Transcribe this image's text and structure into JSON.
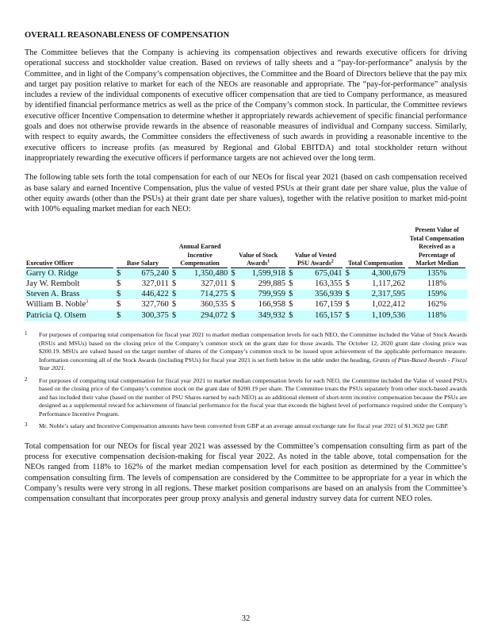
{
  "heading": "OVERALL REASONABLENESS OF COMPENSATION",
  "para1": "The Committee believes that the Company is achieving its compensation objectives and rewards executive officers for driving operational success and stockholder value creation. Based on reviews of tally sheets and a “pay-for-performance” analysis by the Committee, and in light of the Company’s compensation objectives, the Committee and the Board of Directors believe that the pay mix and target pay position relative to market for each of the NEOs are reasonable and appropriate. The “pay-for-performance” analysis includes a review of the individual components of executive officer compensation that are tied to Company performance, as measured by identified financial performance metrics as well as the price of the Company’s common stock. In particular, the Committee reviews executive officer Incentive Compensation to determine whether it appropriately rewards achievement of specific financial performance goals and does not otherwise provide rewards in the absence of reasonable measures of individual and Company success. Similarly, with respect to equity awards, the Committee considers the effectiveness of such awards in providing a reasonable incentive to the executive officers to increase profits (as measured by Regional and Global EBITDA) and total stockholder return without inappropriately rewarding the executive officers if performance targets are not achieved over the long term.",
  "para2": "The following table sets forth the total compensation for each of our NEOs for fiscal year 2021 (based on cash compensation received as base salary and earned Incentive Compensation, plus the value of vested PSUs at their grant date per share value, plus the value of other equity awards (other than the PSUs) at their grant date per share values), together with the relative position to market mid-point with 100% equaling market median for each NEO:",
  "table": {
    "headers": [
      "Executive Officer",
      "Base Salary",
      "Annual Earned Incentive Compensation",
      "Value of Stock Awards",
      "Value of Vested PSU Awards",
      "Total Compensation",
      "Present Value of Total Compensation Received as a Percentage of Market Median"
    ],
    "header_sups": {
      "stock": "1",
      "psu": "2"
    },
    "currency": "$",
    "rows": [
      {
        "name": "Garry O. Ridge",
        "sup": "",
        "base": "675,240",
        "incentive": "1,350,480",
        "stock": "1,599,918",
        "psu": "675,041",
        "total": "4,300,679",
        "pct": "135%"
      },
      {
        "name": "Jay W. Rembolt",
        "sup": "",
        "base": "327,011",
        "incentive": "327,011",
        "stock": "299,885",
        "psu": "163,355",
        "total": "1,117,262",
        "pct": "118%"
      },
      {
        "name": "Steven A. Brass",
        "sup": "",
        "base": "446,422",
        "incentive": "714,275",
        "stock": "799,959",
        "psu": "356,939",
        "total": "2,317,595",
        "pct": "159%"
      },
      {
        "name": "William B. Noble",
        "sup": "3",
        "base": "327,760",
        "incentive": "360,535",
        "stock": "166,958",
        "psu": "167,159",
        "total": "1,022,412",
        "pct": "162%"
      },
      {
        "name": "Patricia Q. Olsem",
        "sup": "",
        "base": "300,375",
        "incentive": "294,072",
        "stock": "349,932",
        "psu": "165,157",
        "total": "1,109,536",
        "pct": "118%"
      }
    ],
    "highlight_color": "#ccffff"
  },
  "footnotes": [
    {
      "num": "1",
      "text": "For purposes of comparing total compensation for fiscal year 2021 to market median compensation levels for each NEO, the Committee included the Value of Stock Awards (RSUs and MSUs) based on the closing price of the Company’s common stock on the grant date for those awards.  The October 12, 2020 grant date closing price was $200.19. MSUs are valued based on the target number of shares of the Company’s common stock to be issued upon achievement of the applicable performance measure. Information concerning all of the Stock Awards (including PSUs) for fiscal year 2021 is set forth below in the table under the heading, ",
      "italic": "Grants of Plan-Based Awards - Fiscal Year 2021."
    },
    {
      "num": "2",
      "text": "For purposes of comparing total compensation for fiscal year 2021 to market median compensation levels for each NEO, the Committee included the Value of vested PSUs based on the closing price of the Company’s common stock on the grant date of $200.19 per share. The Committee treats the PSUs separately from other stock-based awards and has included their value (based on the number of PSU Shares earned by each NEO) as an additional element of short-term incentive compensation because the PSUs are designed as a supplemental reward for achievement of financial performance for the fiscal year that exceeds the highest level of performance required under the Company’s Performance Incentive Program.",
      "italic": ""
    },
    {
      "num": "3",
      "text": "Mr. Noble’s salary and Incentive Compensation amounts have been converted from GBP at an average annual exchange rate for fiscal year 2021 of $1.3632 per GBP.",
      "italic": ""
    }
  ],
  "para3": "Total compensation for our NEOs for fiscal year 2021 was assessed by the Committee’s compensation consulting firm as part of the process for executive compensation decision-making for fiscal year 2022. As noted in the table above, total compensation for the NEOs ranged from 118% to 162% of the market median compensation level for each position as determined by the Committee’s compensation consulting firm. The levels of compensation are considered by the Committee to be appropriate for a year in which the Company’s results were very strong in all regions. These market position comparisons are based on an analysis from the Committee’s compensation consultant that incorporates peer group proxy analysis and general industry survey data for current NEO roles.",
  "page_number": "32"
}
